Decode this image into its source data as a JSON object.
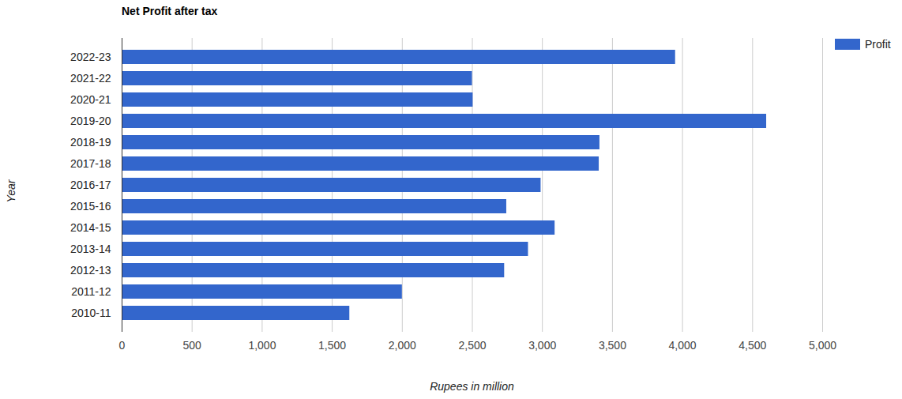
{
  "chart_data": {
    "type": "bar",
    "orientation": "horizontal",
    "title": "Net Profit after tax",
    "x_label": "Rupees in million",
    "y_label": "Year",
    "categories": [
      "2022-23",
      "2021-22",
      "2020-21",
      "2019-20",
      "2018-19",
      "2017-18",
      "2016-17",
      "2015-16",
      "2014-15",
      "2013-14",
      "2012-13",
      "2011-12",
      "2010-11"
    ],
    "series": [
      {
        "name": "Profit",
        "color": "#3366cc",
        "values": [
          3950,
          2500,
          2505,
          4600,
          3410,
          3405,
          2990,
          2745,
          3090,
          2900,
          2730,
          2000,
          1625
        ]
      }
    ],
    "xlim": [
      0,
      5000
    ],
    "xticks": [
      0,
      500,
      {
        "value": 1000,
        "label": "1,000"
      },
      {
        "value": 1500,
        "label": "1,500"
      },
      {
        "value": 2000,
        "label": "2,000"
      },
      {
        "value": 2500,
        "label": "2,500"
      },
      {
        "value": 3000,
        "label": "3,000"
      },
      {
        "value": 3500,
        "label": "3,500"
      },
      {
        "value": 4000,
        "label": "4,000"
      },
      {
        "value": 4500,
        "label": "4,500"
      },
      {
        "value": 5000,
        "label": "5,000"
      }
    ],
    "grid": true,
    "legend": "top-right"
  }
}
